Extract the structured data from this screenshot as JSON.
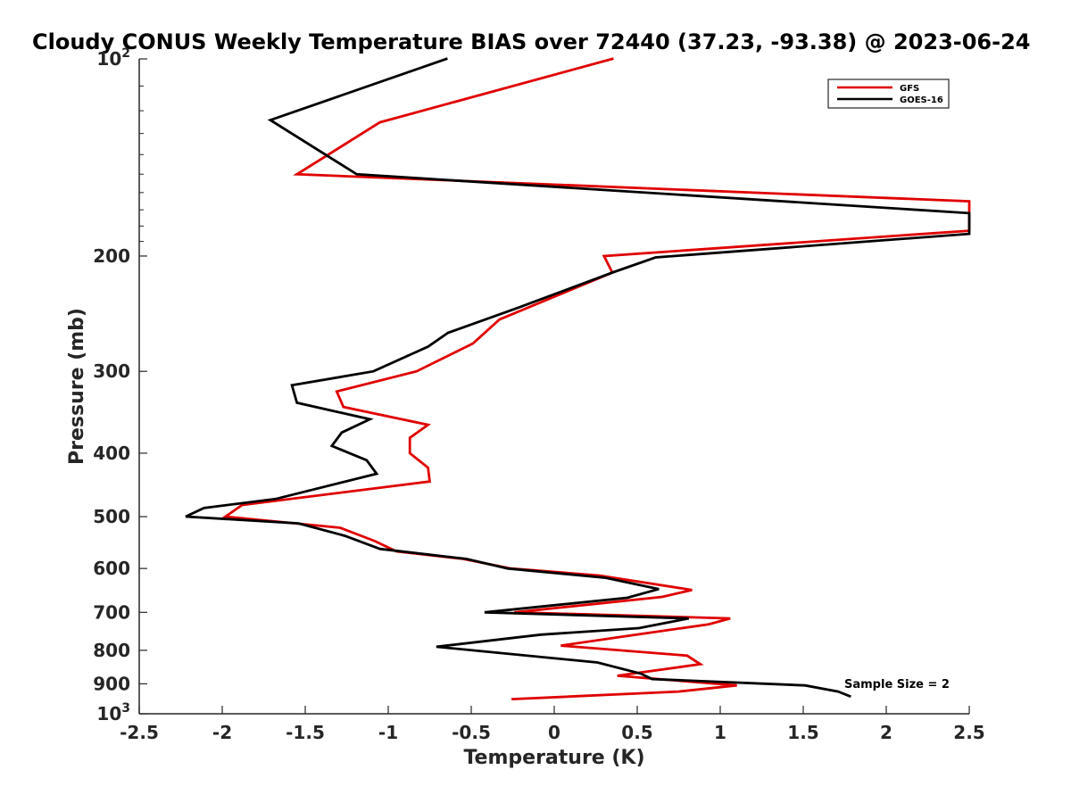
{
  "chart_data": {
    "type": "line",
    "title": "Cloudy CONUS Weekly Temperature BIAS over 72440 (37.23, -93.38) @ 2023-06-24",
    "xlabel": "Temperature (K)",
    "ylabel": "Pressure (mb)",
    "xlim": [
      -2.5,
      2.5
    ],
    "ylim": [
      100,
      1000
    ],
    "y_scale": "log",
    "y_reversed": true,
    "grid": false,
    "legend_position": "top-right",
    "x_ticks": [
      {
        "value": -2.5,
        "label": "-2.5"
      },
      {
        "value": -2,
        "label": "-2"
      },
      {
        "value": -1.5,
        "label": "-1.5"
      },
      {
        "value": -1,
        "label": "-1"
      },
      {
        "value": -0.5,
        "label": "-0.5"
      },
      {
        "value": 0,
        "label": "0"
      },
      {
        "value": 0.5,
        "label": "0.5"
      },
      {
        "value": 1,
        "label": "1"
      },
      {
        "value": 1.5,
        "label": "1.5"
      },
      {
        "value": 2,
        "label": "2"
      },
      {
        "value": 2.5,
        "label": "2.5"
      }
    ],
    "y_ticks": [
      {
        "value": 100,
        "base": "10",
        "exp": "2"
      },
      {
        "value": 200,
        "label": "200"
      },
      {
        "value": 300,
        "label": "300"
      },
      {
        "value": 400,
        "label": "400"
      },
      {
        "value": 500,
        "label": "500"
      },
      {
        "value": 600,
        "label": "600"
      },
      {
        "value": 700,
        "label": "700"
      },
      {
        "value": 800,
        "label": "800"
      },
      {
        "value": 900,
        "label": "900"
      },
      {
        "value": 1000,
        "base": "10",
        "exp": "3"
      }
    ],
    "series": [
      {
        "name": "GFS",
        "color": "#e00000",
        "points": [
          [
            0.35,
            100
          ],
          [
            -1.05,
            125
          ],
          [
            -1.55,
            150
          ],
          [
            2.5,
            165
          ],
          [
            2.5,
            183
          ],
          [
            0.3,
            200
          ],
          [
            0.35,
            212
          ],
          [
            0.05,
            228
          ],
          [
            -0.33,
            250
          ],
          [
            -0.49,
            272
          ],
          [
            -0.83,
            300
          ],
          [
            -1.31,
            322
          ],
          [
            -1.27,
            340
          ],
          [
            -0.76,
            362
          ],
          [
            -0.87,
            379
          ],
          [
            -0.87,
            400
          ],
          [
            -0.76,
            421
          ],
          [
            -0.75,
            442
          ],
          [
            -1.88,
            480
          ],
          [
            -1.98,
            500
          ],
          [
            -1.29,
            520
          ],
          [
            -1.08,
            545
          ],
          [
            -0.95,
            565
          ],
          [
            -0.55,
            580
          ],
          [
            -0.26,
            600
          ],
          [
            0.27,
            615
          ],
          [
            0.83,
            647
          ],
          [
            0.65,
            663
          ],
          [
            -0.24,
            700
          ],
          [
            1.06,
            715
          ],
          [
            0.93,
            730
          ],
          [
            0.45,
            760
          ],
          [
            0.04,
            787
          ],
          [
            0.8,
            815
          ],
          [
            0.88,
            840
          ],
          [
            0.38,
            875
          ],
          [
            1.1,
            905
          ],
          [
            0.75,
            925
          ],
          [
            -0.25,
            950
          ]
        ]
      },
      {
        "name": "GOES-16",
        "color": "#000000",
        "points": [
          [
            -0.65,
            100
          ],
          [
            -1.71,
            124
          ],
          [
            -1.19,
            150
          ],
          [
            2.5,
            172
          ],
          [
            2.5,
            185
          ],
          [
            0.61,
            201
          ],
          [
            0.35,
            212
          ],
          [
            -0.22,
            240
          ],
          [
            -0.64,
            262
          ],
          [
            -0.76,
            275
          ],
          [
            -1.09,
            300
          ],
          [
            -1.58,
            315
          ],
          [
            -1.55,
            335
          ],
          [
            -1.11,
            355
          ],
          [
            -1.28,
            372
          ],
          [
            -1.34,
            390
          ],
          [
            -1.13,
            410
          ],
          [
            -1.07,
            430
          ],
          [
            -1.68,
            470
          ],
          [
            -2.11,
            485
          ],
          [
            -2.22,
            500
          ],
          [
            -1.54,
            512
          ],
          [
            -1.26,
            535
          ],
          [
            -1.05,
            560
          ],
          [
            -0.53,
            580
          ],
          [
            -0.28,
            600
          ],
          [
            0.31,
            620
          ],
          [
            0.63,
            645
          ],
          [
            0.44,
            665
          ],
          [
            -0.42,
            700
          ],
          [
            0.81,
            715
          ],
          [
            0.51,
            740
          ],
          [
            -0.08,
            757
          ],
          [
            -0.71,
            790
          ],
          [
            0.26,
            835
          ],
          [
            0.52,
            868
          ],
          [
            0.59,
            885
          ],
          [
            1.51,
            905
          ],
          [
            1.71,
            925
          ],
          [
            1.78,
            940
          ]
        ]
      }
    ],
    "annotations": [
      {
        "text": "Sample Size = 2"
      }
    ]
  }
}
